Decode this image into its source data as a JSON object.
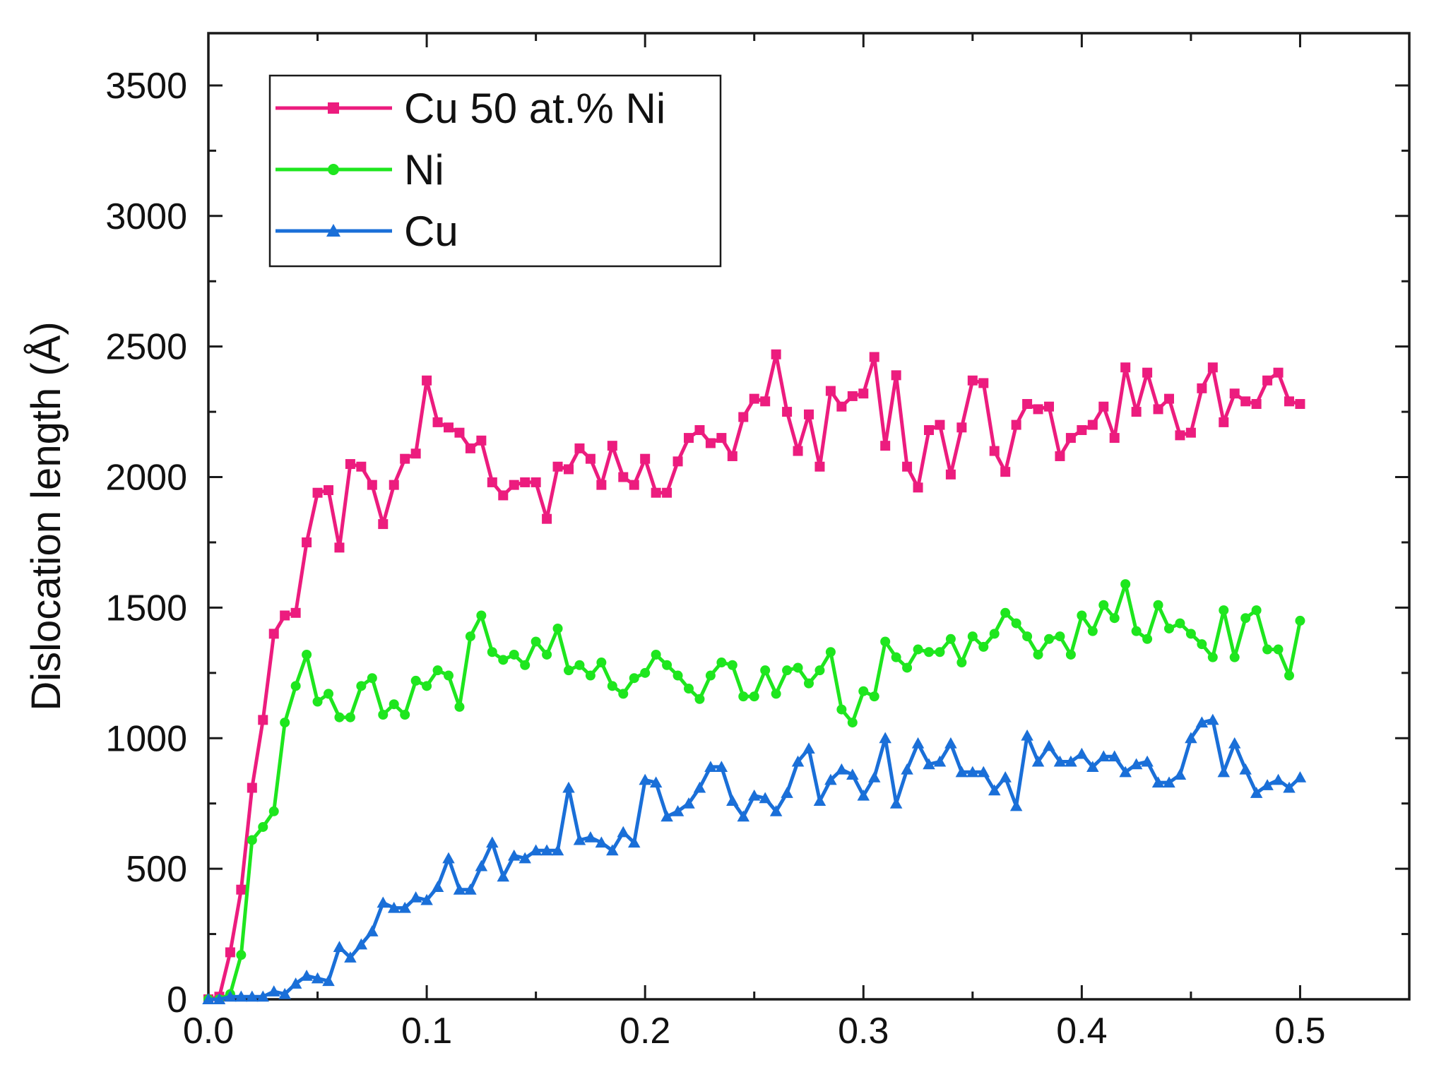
{
  "chart_data": {
    "type": "line",
    "title": "",
    "xlabel": "",
    "ylabel": "Dislocation length (Å)",
    "xlim": [
      0.0,
      0.55
    ],
    "ylim": [
      0,
      3700
    ],
    "x_ticks": [
      0.0,
      0.1,
      0.2,
      0.3,
      0.4,
      0.5
    ],
    "x_tick_labels": [
      "0.0",
      "0.1",
      "0.2",
      "0.3",
      "0.4",
      "0.5"
    ],
    "y_ticks": [
      0,
      500,
      1000,
      1500,
      2000,
      2500,
      3000,
      3500
    ],
    "y_tick_labels": [
      "0",
      "500",
      "1000",
      "1500",
      "2000",
      "2500",
      "3000",
      "3500"
    ],
    "grid": false,
    "legend_position": "top-left",
    "x": [
      0.0,
      0.005,
      0.01,
      0.015,
      0.02,
      0.025,
      0.03,
      0.035,
      0.04,
      0.045,
      0.05,
      0.055,
      0.06,
      0.065,
      0.07,
      0.075,
      0.08,
      0.085,
      0.09,
      0.095,
      0.1,
      0.105,
      0.11,
      0.115,
      0.12,
      0.125,
      0.13,
      0.135,
      0.14,
      0.145,
      0.15,
      0.155,
      0.16,
      0.165,
      0.17,
      0.175,
      0.18,
      0.185,
      0.19,
      0.195,
      0.2,
      0.205,
      0.21,
      0.215,
      0.22,
      0.225,
      0.23,
      0.235,
      0.24,
      0.245,
      0.25,
      0.255,
      0.26,
      0.265,
      0.27,
      0.275,
      0.28,
      0.285,
      0.29,
      0.295,
      0.3,
      0.305,
      0.31,
      0.315,
      0.32,
      0.325,
      0.33,
      0.335,
      0.34,
      0.345,
      0.35,
      0.355,
      0.36,
      0.365,
      0.37,
      0.375,
      0.38,
      0.385,
      0.39,
      0.395,
      0.4,
      0.405,
      0.41,
      0.415,
      0.42,
      0.425,
      0.43,
      0.435,
      0.44,
      0.445,
      0.45,
      0.455,
      0.46,
      0.465,
      0.47,
      0.475,
      0.48,
      0.485,
      0.49,
      0.495,
      0.5
    ],
    "series": [
      {
        "name": "Cu 50 at.% Ni",
        "color": "#ec1c7e",
        "marker": "square",
        "values": [
          0,
          10,
          180,
          420,
          810,
          1070,
          1400,
          1470,
          1480,
          1750,
          1940,
          1950,
          1730,
          2050,
          2040,
          1970,
          1820,
          1970,
          2070,
          2090,
          2370,
          2210,
          2190,
          2170,
          2110,
          2140,
          1980,
          1930,
          1970,
          1980,
          1980,
          1840,
          2040,
          2030,
          2110,
          2070,
          1970,
          2120,
          2000,
          1970,
          2070,
          1940,
          1940,
          2060,
          2150,
          2180,
          2130,
          2150,
          2080,
          2230,
          2300,
          2290,
          2470,
          2250,
          2100,
          2240,
          2040,
          2330,
          2270,
          2310,
          2320,
          2460,
          2120,
          2390,
          2040,
          1960,
          2180,
          2200,
          2010,
          2190,
          2370,
          2360,
          2100,
          2020,
          2200,
          2280,
          2260,
          2270,
          2080,
          2150,
          2180,
          2200,
          2270,
          2150,
          2420,
          2250,
          2400,
          2260,
          2300,
          2160,
          2170,
          2340,
          2420,
          2210,
          2320,
          2290,
          2280,
          2370,
          2400,
          2290,
          2280
        ]
      },
      {
        "name": "Ni",
        "color": "#1ee61e",
        "marker": "circle",
        "values": [
          0,
          0,
          20,
          170,
          610,
          660,
          720,
          1060,
          1200,
          1320,
          1140,
          1170,
          1080,
          1080,
          1200,
          1230,
          1090,
          1130,
          1090,
          1220,
          1200,
          1260,
          1240,
          1120,
          1390,
          1470,
          1330,
          1300,
          1320,
          1280,
          1370,
          1320,
          1420,
          1260,
          1280,
          1240,
          1290,
          1200,
          1170,
          1230,
          1250,
          1320,
          1280,
          1240,
          1190,
          1150,
          1240,
          1290,
          1280,
          1160,
          1160,
          1260,
          1170,
          1260,
          1270,
          1210,
          1260,
          1330,
          1110,
          1060,
          1180,
          1160,
          1370,
          1310,
          1270,
          1340,
          1330,
          1330,
          1380,
          1290,
          1390,
          1350,
          1400,
          1480,
          1440,
          1390,
          1320,
          1380,
          1390,
          1320,
          1470,
          1410,
          1510,
          1460,
          1590,
          1410,
          1380,
          1510,
          1420,
          1440,
          1400,
          1360,
          1310,
          1490,
          1310,
          1460,
          1490,
          1340,
          1340,
          1240,
          1450
        ]
      },
      {
        "name": "Cu",
        "color": "#1a6fd8",
        "marker": "triangle",
        "values": [
          0,
          0,
          10,
          10,
          10,
          10,
          30,
          20,
          60,
          90,
          80,
          70,
          200,
          160,
          210,
          260,
          370,
          350,
          350,
          390,
          380,
          430,
          540,
          420,
          420,
          510,
          600,
          470,
          550,
          540,
          570,
          570,
          570,
          810,
          610,
          620,
          600,
          570,
          640,
          600,
          840,
          830,
          700,
          720,
          750,
          810,
          890,
          890,
          760,
          700,
          780,
          770,
          720,
          790,
          910,
          960,
          760,
          840,
          880,
          860,
          780,
          850,
          1000,
          750,
          880,
          980,
          900,
          910,
          980,
          870,
          870,
          870,
          800,
          850,
          740,
          1010,
          910,
          970,
          910,
          910,
          940,
          890,
          930,
          930,
          870,
          900,
          910,
          830,
          830,
          860,
          1000,
          1060,
          1070,
          870,
          980,
          880,
          790,
          820,
          840,
          810,
          850
        ]
      }
    ]
  }
}
